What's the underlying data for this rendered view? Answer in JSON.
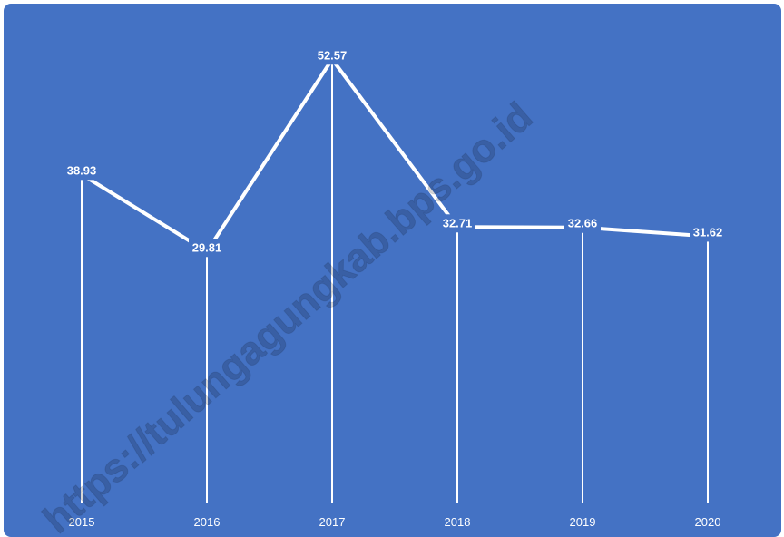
{
  "chart_data": {
    "type": "line",
    "categories": [
      "2015",
      "2016",
      "2017",
      "2018",
      "2019",
      "2020"
    ],
    "values": [
      38.93,
      29.81,
      52.57,
      32.71,
      32.66,
      31.62
    ],
    "value_labels": [
      "38.93",
      "29.81",
      "52.57",
      "32.71",
      "32.66",
      "31.62"
    ],
    "title": "",
    "xlabel": "",
    "ylabel": "",
    "ylim": [
      0,
      57
    ],
    "grid": false,
    "legend": "none",
    "drop_lines": true,
    "colors": {
      "background": "#4472c4",
      "line": "#ffffff",
      "text": "#ffffff"
    }
  },
  "watermark": "https://tulungagungkab.bps.go.id"
}
